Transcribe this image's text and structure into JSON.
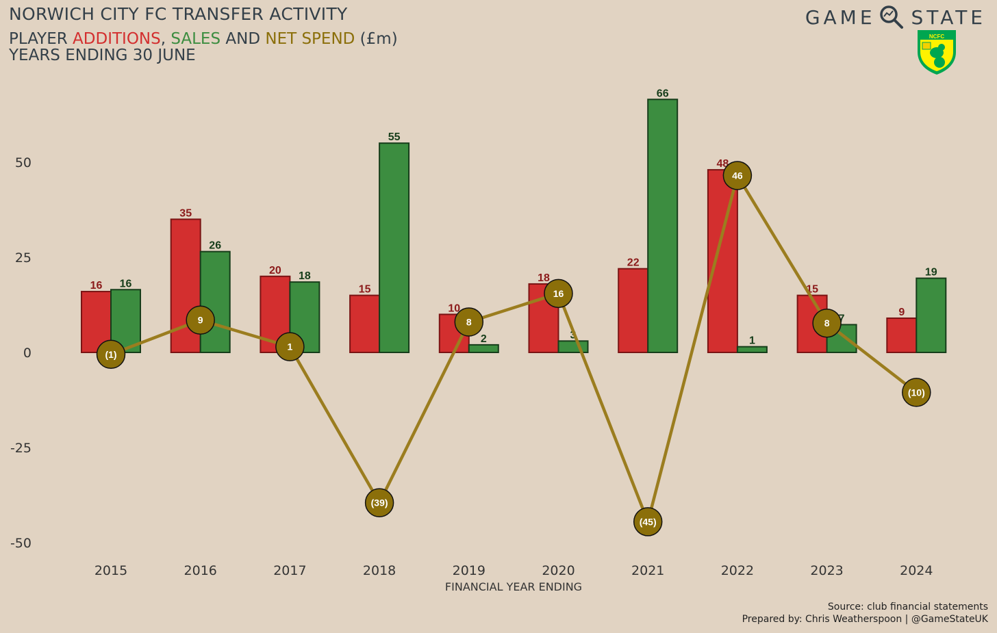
{
  "header": {
    "title": "NORWICH CITY FC TRANSFER ACTIVITY",
    "subtitle_prefix": "PLAYER ",
    "subtitle_additions": "ADDITIONS",
    "subtitle_sep1": ", ",
    "subtitle_sales": "SALES",
    "subtitle_sep2": " AND ",
    "subtitle_net": "NET SPEND",
    "subtitle_suffix": " (£m)",
    "subtitle_line2": "YEARS ENDING 30 JUNE"
  },
  "brand": {
    "left": "GAME",
    "right": "STATE",
    "icon": "magnifier-icon",
    "crest_icon": "norwich-crest-icon",
    "crest_text": "NCFC"
  },
  "footer": {
    "source": "Source: club financial statements",
    "prepared": "Prepared by: Chris Weatherspoon | @GameStateUK"
  },
  "colors": {
    "additions": "#d32f2f",
    "sales": "#3c8d40",
    "net": "#8b6f0a",
    "net_line": "#9b7d1f",
    "background": "#e1d3c2",
    "text": "#333f48"
  },
  "chart_data": {
    "type": "bar",
    "categories": [
      "2015",
      "2016",
      "2017",
      "2018",
      "2019",
      "2020",
      "2021",
      "2022",
      "2023",
      "2024"
    ],
    "series": [
      {
        "name": "ADDITIONS",
        "kind": "bar",
        "values": [
          16,
          35,
          20,
          15,
          10,
          18,
          22,
          48,
          15,
          9
        ],
        "labels": [
          "16",
          "35",
          "20",
          "15",
          "10",
          "18",
          "22",
          "48",
          "15",
          "9"
        ]
      },
      {
        "name": "SALES",
        "kind": "bar",
        "values": [
          16.5,
          26.5,
          18.5,
          55,
          2,
          3,
          66.5,
          1.5,
          7.3,
          19.5
        ],
        "labels": [
          "16",
          "26",
          "18",
          "55",
          "2",
          "3",
          "66",
          "1",
          "7",
          "19"
        ]
      },
      {
        "name": "NET SPEND",
        "kind": "line",
        "values": [
          -0.5,
          8.5,
          1.5,
          -39.5,
          8,
          15.5,
          -44.5,
          46.5,
          7.7,
          -10.5
        ],
        "labels": [
          "(1)",
          "9",
          "1",
          "(39)",
          "8",
          "16",
          "(45)",
          "46",
          "8",
          "(10)"
        ]
      }
    ],
    "xlabel": "FINANCIAL YEAR ENDING",
    "ylabel": "",
    "yticks": [
      50,
      25,
      0,
      -25,
      -50
    ],
    "ylim": [
      -55,
      70
    ],
    "grid": false,
    "legend": "none"
  }
}
